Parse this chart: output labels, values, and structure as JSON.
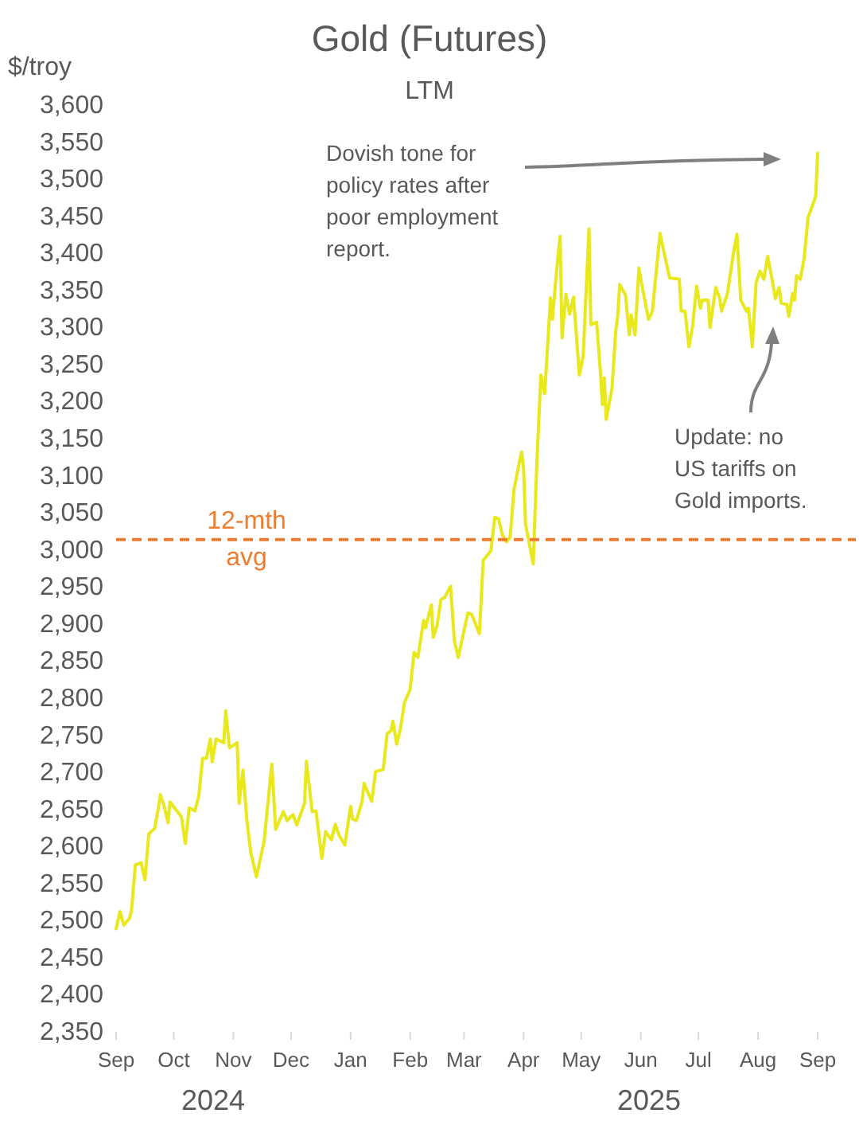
{
  "chart_data": {
    "type": "line",
    "title": "Gold (Futures)",
    "subtitle": "LTM",
    "ylabel": "$/troy",
    "x": [
      "2024-09-01",
      "2024-09-03",
      "2024-09-05",
      "2024-09-08",
      "2024-09-09",
      "2024-09-11",
      "2024-09-14",
      "2024-09-16",
      "2024-09-18",
      "2024-09-21",
      "2024-09-23",
      "2024-09-24",
      "2024-09-26",
      "2024-09-28",
      "2024-09-29",
      "2024-10-05",
      "2024-10-07",
      "2024-10-09",
      "2024-10-12",
      "2024-10-14",
      "2024-10-16",
      "2024-10-18",
      "2024-10-20",
      "2024-10-21",
      "2024-10-23",
      "2024-10-27",
      "2024-10-28",
      "2024-10-30",
      "2024-11-03",
      "2024-11-04",
      "2024-11-06",
      "2024-11-08",
      "2024-11-10",
      "2024-11-13",
      "2024-11-17",
      "2024-11-21",
      "2024-11-23",
      "2024-11-25",
      "2024-11-27",
      "2024-11-29",
      "2024-12-02",
      "2024-12-04",
      "2024-12-08",
      "2024-12-09",
      "2024-12-12",
      "2024-12-14",
      "2024-12-17",
      "2024-12-19",
      "2024-12-22",
      "2024-12-24",
      "2024-12-26",
      "2024-12-29",
      "2025-01-01",
      "2025-01-02",
      "2025-01-04",
      "2025-01-07",
      "2025-01-08",
      "2025-01-12",
      "2025-01-14",
      "2025-01-18",
      "2025-01-20",
      "2025-01-22",
      "2025-01-23",
      "2025-01-25",
      "2025-01-27",
      "2025-01-29",
      "2025-02-01",
      "2025-02-03",
      "2025-02-05",
      "2025-02-08",
      "2025-02-09",
      "2025-02-12",
      "2025-02-13",
      "2025-02-15",
      "2025-02-17",
      "2025-02-19",
      "2025-02-22",
      "2025-02-24",
      "2025-02-26",
      "2025-03-03",
      "2025-03-05",
      "2025-03-09",
      "2025-03-11",
      "2025-03-15",
      "2025-03-17",
      "2025-03-19",
      "2025-03-21",
      "2025-03-23",
      "2025-03-25",
      "2025-03-27",
      "2025-03-30",
      "2025-03-31",
      "2025-04-01",
      "2025-04-02",
      "2025-04-05",
      "2025-04-06",
      "2025-04-08",
      "2025-04-10",
      "2025-04-12",
      "2025-04-15",
      "2025-04-16",
      "2025-04-18",
      "2025-04-20",
      "2025-04-21",
      "2025-04-23",
      "2025-04-25",
      "2025-04-27",
      "2025-04-30",
      "2025-05-02",
      "2025-05-05",
      "2025-05-06",
      "2025-05-09",
      "2025-05-11",
      "2025-05-12",
      "2025-05-13",
      "2025-05-14",
      "2025-05-17",
      "2025-05-19",
      "2025-05-20",
      "2025-05-21",
      "2025-05-24",
      "2025-05-26",
      "2025-05-27",
      "2025-05-29",
      "2025-05-31",
      "2025-06-02",
      "2025-06-05",
      "2025-06-07",
      "2025-06-11",
      "2025-06-14",
      "2025-06-16",
      "2025-06-21",
      "2025-06-22",
      "2025-06-24",
      "2025-06-26",
      "2025-06-28",
      "2025-06-30",
      "2025-07-02",
      "2025-07-03",
      "2025-07-06",
      "2025-07-07",
      "2025-07-10",
      "2025-07-12",
      "2025-07-13",
      "2025-07-16",
      "2025-07-19",
      "2025-07-21",
      "2025-07-23",
      "2025-07-26",
      "2025-07-27",
      "2025-07-29",
      "2025-07-31",
      "2025-08-02",
      "2025-08-04",
      "2025-08-06",
      "2025-08-08",
      "2025-08-10",
      "2025-08-12",
      "2025-08-13",
      "2025-08-16",
      "2025-08-17",
      "2025-08-19",
      "2025-08-20",
      "2025-08-21",
      "2025-08-23",
      "2025-08-25",
      "2025-08-27",
      "2025-08-31",
      "2025-09-01"
    ],
    "series": [
      {
        "color": "#e8e81c",
        "values": [
          2489,
          2512,
          2494,
          2503,
          2514,
          2575,
          2578,
          2555,
          2617,
          2624,
          2652,
          2670,
          2654,
          2632,
          2660,
          2640,
          2604,
          2652,
          2648,
          2668,
          2719,
          2719,
          2745,
          2714,
          2745,
          2740,
          2783,
          2733,
          2740,
          2658,
          2703,
          2636,
          2593,
          2559,
          2607,
          2711,
          2623,
          2635,
          2647,
          2635,
          2643,
          2629,
          2658,
          2715,
          2647,
          2648,
          2584,
          2620,
          2609,
          2630,
          2615,
          2602,
          2654,
          2637,
          2635,
          2661,
          2685,
          2661,
          2701,
          2704,
          2752,
          2756,
          2769,
          2738,
          2760,
          2794,
          2812,
          2862,
          2855,
          2905,
          2895,
          2926,
          2882,
          2898,
          2933,
          2936,
          2951,
          2877,
          2855,
          2915,
          2913,
          2887,
          2986,
          2999,
          3044,
          3042,
          3020,
          3011,
          3017,
          3081,
          3121,
          3132,
          3110,
          3035,
          2995,
          2981,
          3124,
          3236,
          3211,
          3340,
          3311,
          3372,
          3423,
          3286,
          3345,
          3318,
          3341,
          3236,
          3261,
          3433,
          3304,
          3307,
          3239,
          3196,
          3232,
          3176,
          3218,
          3297,
          3315,
          3358,
          3344,
          3290,
          3317,
          3290,
          3380,
          3351,
          3311,
          3322,
          3427,
          3390,
          3367,
          3365,
          3322,
          3322,
          3274,
          3303,
          3356,
          3326,
          3337,
          3337,
          3300,
          3354,
          3340,
          3322,
          3345,
          3397,
          3426,
          3337,
          3322,
          3326,
          3274,
          3361,
          3376,
          3365,
          3396,
          3369,
          3339,
          3354,
          3333,
          3331,
          3315,
          3346,
          3337,
          3370,
          3365,
          3394,
          3448,
          3477,
          3535
        ]
      }
    ],
    "xlim": [
      "2024-09-01",
      "2025-09-01"
    ],
    "xticks": [
      {
        "value": "2024-09-01",
        "label": "Sep"
      },
      {
        "value": "2024-10-01",
        "label": "Oct"
      },
      {
        "value": "2024-11-01",
        "label": "Nov"
      },
      {
        "value": "2024-12-01",
        "label": "Dec"
      },
      {
        "value": "2025-01-01",
        "label": "Jan"
      },
      {
        "value": "2025-02-01",
        "label": "Feb"
      },
      {
        "value": "2025-03-01",
        "label": "Mar"
      },
      {
        "value": "2025-04-01",
        "label": "Apr"
      },
      {
        "value": "2025-05-01",
        "label": "May"
      },
      {
        "value": "2025-06-01",
        "label": "Jun"
      },
      {
        "value": "2025-07-01",
        "label": "Jul"
      },
      {
        "value": "2025-08-01",
        "label": "Aug"
      },
      {
        "value": "2025-09-01",
        "label": "Sep"
      }
    ],
    "ylim": [
      2350,
      3600
    ],
    "yticks": [
      {
        "value": 2350,
        "label": "2,350"
      },
      {
        "value": 2400,
        "label": "2,400"
      },
      {
        "value": 2450,
        "label": "2,450"
      },
      {
        "value": 2500,
        "label": "2,500"
      },
      {
        "value": 2550,
        "label": "2,550"
      },
      {
        "value": 2600,
        "label": "2,600"
      },
      {
        "value": 2650,
        "label": "2,650"
      },
      {
        "value": 2700,
        "label": "2,700"
      },
      {
        "value": 2750,
        "label": "2,750"
      },
      {
        "value": 2800,
        "label": "2,800"
      },
      {
        "value": 2850,
        "label": "2,850"
      },
      {
        "value": 2900,
        "label": "2,900"
      },
      {
        "value": 2950,
        "label": "2,950"
      },
      {
        "value": 3000,
        "label": "3,000"
      },
      {
        "value": 3050,
        "label": "3,050"
      },
      {
        "value": 3100,
        "label": "3,100"
      },
      {
        "value": 3150,
        "label": "3,150"
      },
      {
        "value": 3200,
        "label": "3,200"
      },
      {
        "value": 3250,
        "label": "3,250"
      },
      {
        "value": 3300,
        "label": "3,300"
      },
      {
        "value": 3350,
        "label": "3,350"
      },
      {
        "value": 3400,
        "label": "3,400"
      },
      {
        "value": 3450,
        "label": "3,450"
      },
      {
        "value": 3500,
        "label": "3,500"
      },
      {
        "value": 3550,
        "label": "3,550"
      },
      {
        "value": 3600,
        "label": "3,600"
      }
    ],
    "ref_lines": [
      {
        "axis": "y",
        "value": 3014,
        "label": "12-mth avg",
        "color": "#ed7d31",
        "line_style": "dashed"
      }
    ],
    "annotations": [
      "Dovish tone for policy rates after poor employment report.",
      "Update: no US tariffs on Gold imports.",
      "2024",
      "2025"
    ]
  }
}
